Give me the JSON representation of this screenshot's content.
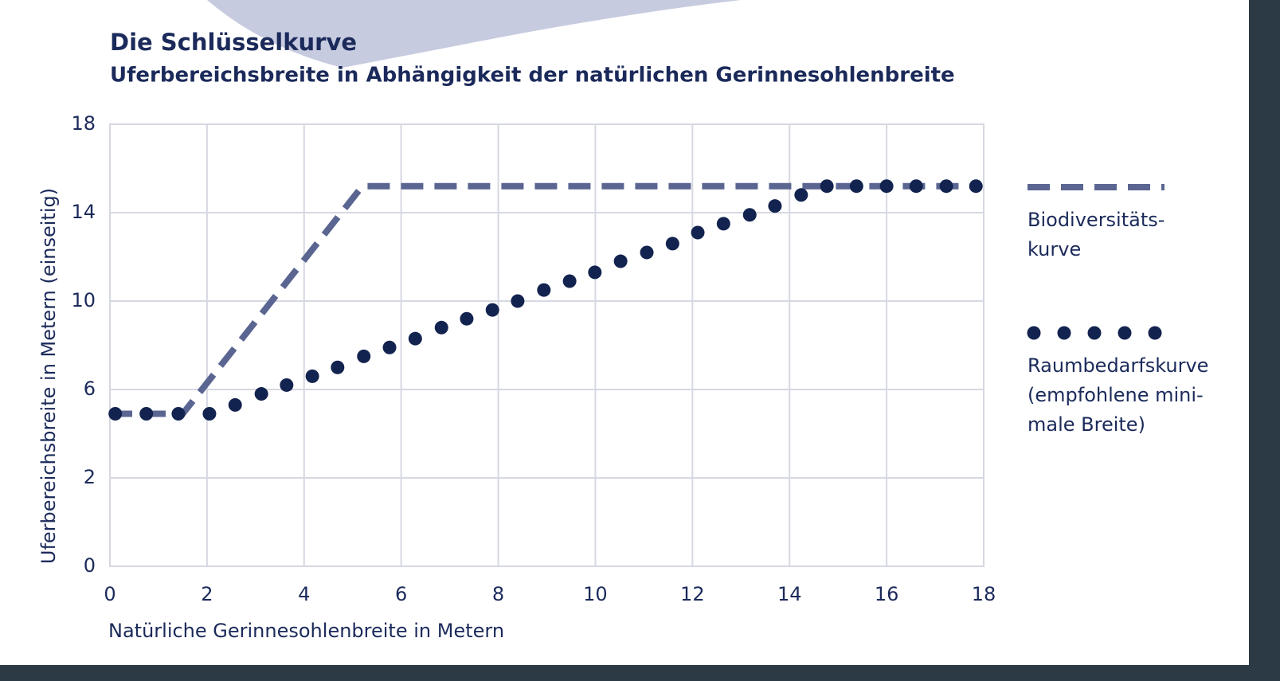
{
  "chart_data": {
    "type": "line",
    "title": "Die Schlüsselkurve",
    "subtitle": "Uferbereichsbreite in Abhängigkeit der natürlichen Gerinnesohlenbreite",
    "xlabel": "Natürliche Gerinnesohlenbreite in Metern",
    "ylabel": "Uferbereichsbreite in Metern (einseitig)",
    "xlim": [
      0,
      18
    ],
    "ylim": [
      0,
      18
    ],
    "xticks": [
      0,
      2,
      4,
      6,
      8,
      10,
      12,
      14,
      16,
      18
    ],
    "yticks": [
      0,
      2,
      6,
      10,
      14,
      18
    ],
    "grid": true,
    "series": [
      {
        "name": [
          "Biodiversitäts-",
          "kurve"
        ],
        "color": "#5a6591",
        "style": "dashed",
        "x": [
          0,
          1.5,
          5.2,
          17.9
        ],
        "values": [
          4.9,
          4.9,
          15.2,
          15.2
        ]
      },
      {
        "name": [
          "Raumbedarfskurve",
          "(empfohlene mini-",
          "male Breite)"
        ],
        "color": "#13234f",
        "style": "dotted",
        "x": [
          0.11,
          0.75,
          1.41,
          2.05,
          2.58,
          3.12,
          3.64,
          4.17,
          4.69,
          5.23,
          5.76,
          6.29,
          6.83,
          7.35,
          7.88,
          8.4,
          8.94,
          9.47,
          9.99,
          10.52,
          11.06,
          11.59,
          12.11,
          12.64,
          13.18,
          13.7,
          14.24,
          14.77,
          15.38,
          16.0,
          16.61,
          17.23,
          17.84
        ],
        "values": [
          4.9,
          4.9,
          4.9,
          4.9,
          5.3,
          5.8,
          6.2,
          6.6,
          7.0,
          7.5,
          7.9,
          8.3,
          8.8,
          9.2,
          9.6,
          10.0,
          10.5,
          10.9,
          11.3,
          11.8,
          12.2,
          12.6,
          13.1,
          13.5,
          13.9,
          14.3,
          14.8,
          15.2,
          15.2,
          15.2,
          15.2,
          15.2,
          15.2
        ]
      }
    ]
  }
}
